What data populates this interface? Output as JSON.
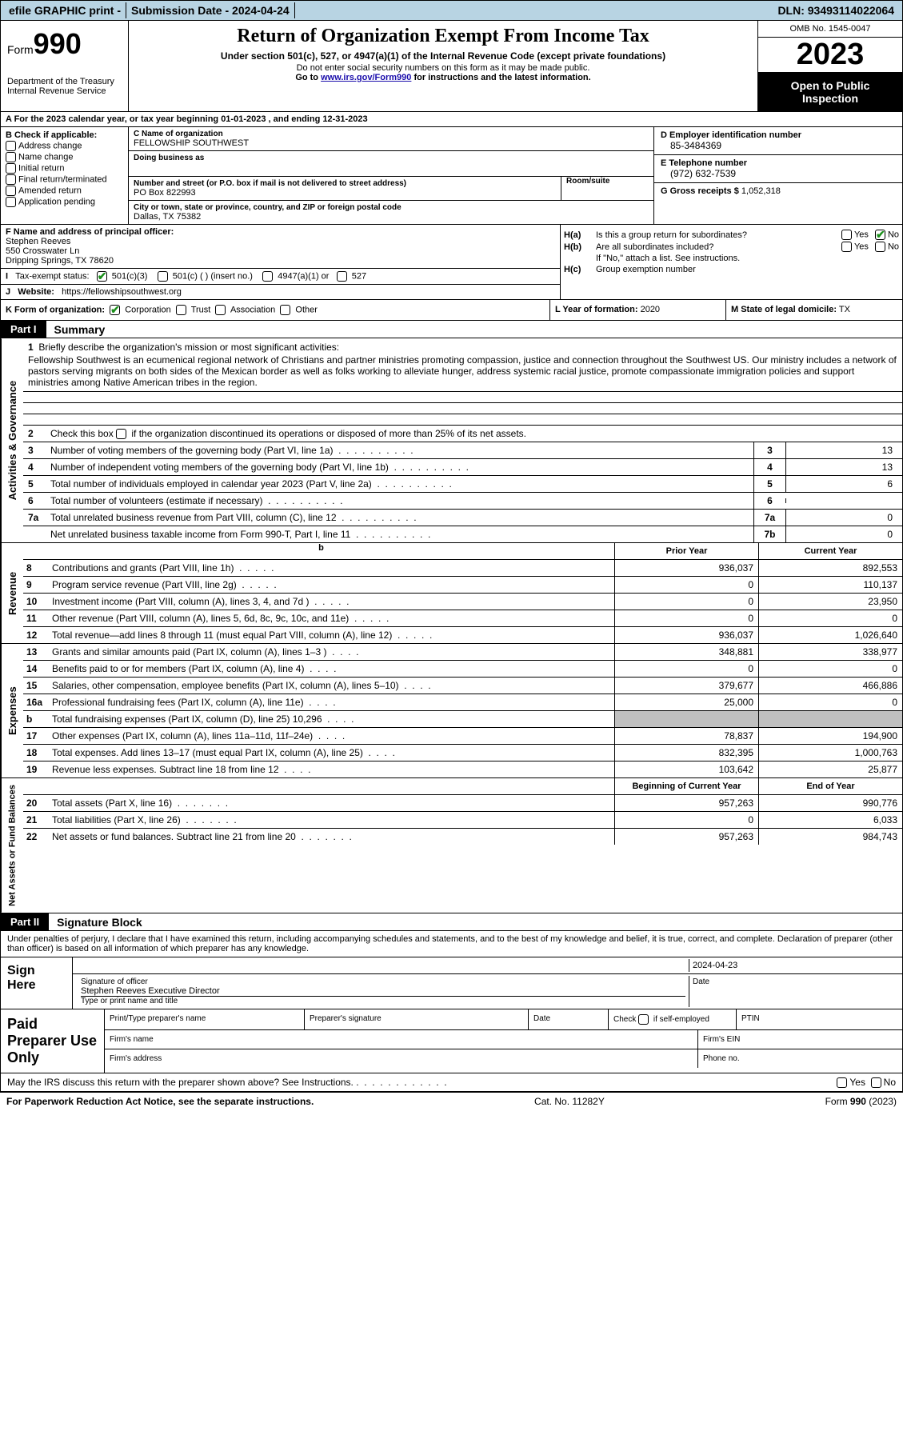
{
  "header_bar": {
    "efile": "efile GRAPHIC print -",
    "submission": "Submission Date - 2024-04-24",
    "dln": "DLN: 93493114022064"
  },
  "form": {
    "prefix": "Form",
    "number": "990",
    "title": "Return of Organization Exempt From Income Tax",
    "subtitle": "Under section 501(c), 527, or 4947(a)(1) of the Internal Revenue Code (except private foundations)",
    "ssn_note": "Do not enter social security numbers on this form as it may be made public.",
    "goto": "Go to ",
    "url": "www.irs.gov/Form990",
    "url_suffix": " for instructions and the latest information.",
    "dept": "Department of the Treasury",
    "irs": "Internal Revenue Service",
    "omb": "OMB No. 1545-0047",
    "year": "2023",
    "inspection": "Open to Public Inspection"
  },
  "section_a": "A For the 2023 calendar year, or tax year beginning 01-01-2023    , and ending 12-31-2023",
  "section_b": {
    "header": "B Check if applicable:",
    "items": [
      "Address change",
      "Name change",
      "Initial return",
      "Final return/terminated",
      "Amended return",
      "Application pending"
    ]
  },
  "section_c": {
    "name_label": "C Name of organization",
    "name": "FELLOWSHIP SOUTHWEST",
    "dba_label": "Doing business as",
    "dba": "",
    "street_label": "Number and street (or P.O. box if mail is not delivered to street address)",
    "street": "PO Box 822993",
    "room_label": "Room/suite",
    "city_label": "City or town, state or province, country, and ZIP or foreign postal code",
    "city": "Dallas, TX  75382"
  },
  "section_d": {
    "ein_label": "D Employer identification number",
    "ein": "85-3484369",
    "phone_label": "E Telephone number",
    "phone": "(972) 632-7539",
    "gross_label": "G Gross receipts $",
    "gross": "1,052,318"
  },
  "section_f": {
    "label": "F  Name and address of principal officer:",
    "name": "Stephen Reeves",
    "street": "550 Crosswater Ln",
    "city": "Dripping Springs, TX  78620"
  },
  "section_h": {
    "ha": "Is this a group return for subordinates?",
    "hb": "Are all subordinates included?",
    "hb_note": "If \"No,\" attach a list. See instructions.",
    "hc": "Group exemption number"
  },
  "section_i": {
    "label": "Tax-exempt status:",
    "opt1": "501(c)(3)",
    "opt2": "501(c) (  ) (insert no.)",
    "opt3": "4947(a)(1) or",
    "opt4": "527"
  },
  "section_j": {
    "label": "Website:",
    "url": "https://fellowshipsouthwest.org"
  },
  "section_k": {
    "label": "K Form of organization:",
    "opts": [
      "Corporation",
      "Trust",
      "Association",
      "Other"
    ]
  },
  "section_l": {
    "label": "L Year of formation:",
    "val": "2020"
  },
  "section_m": {
    "label": "M State of legal domicile:",
    "val": "TX"
  },
  "part1": {
    "label": "Part I",
    "title": "Summary",
    "line1_label": "Briefly describe the organization's mission or most significant activities:",
    "mission": "Fellowship Southwest is an ecumenical regional network of Christians and partner ministries promoting compassion, justice and connection throughout the Southwest US. Our ministry includes a network of pastors serving migrants on both sides of the Mexican border as well as folks working to alleviate hunger, address systemic racial justice, promote compassionate immigration policies and support ministries among Native American tribes in the region.",
    "line2": "Check this box         if the organization discontinued its operations or disposed of more than 25% of its net assets.",
    "gov_lines": [
      {
        "n": "3",
        "desc": "Number of voting members of the governing body (Part VI, line 1a)",
        "box": "3",
        "val": "13"
      },
      {
        "n": "4",
        "desc": "Number of independent voting members of the governing body (Part VI, line 1b)",
        "box": "4",
        "val": "13"
      },
      {
        "n": "5",
        "desc": "Total number of individuals employed in calendar year 2023 (Part V, line 2a)",
        "box": "5",
        "val": "6"
      },
      {
        "n": "6",
        "desc": "Total number of volunteers (estimate if necessary)",
        "box": "6",
        "val": ""
      },
      {
        "n": "7a",
        "desc": "Total unrelated business revenue from Part VIII, column (C), line 12",
        "box": "7a",
        "val": "0"
      },
      {
        "n": "",
        "desc": "Net unrelated business taxable income from Form 990-T, Part I, line 11",
        "box": "7b",
        "val": "0"
      }
    ],
    "col_headers": {
      "prior": "Prior Year",
      "current": "Current Year"
    },
    "revenue_lines": [
      {
        "n": "8",
        "desc": "Contributions and grants (Part VIII, line 1h)",
        "prior": "936,037",
        "current": "892,553"
      },
      {
        "n": "9",
        "desc": "Program service revenue (Part VIII, line 2g)",
        "prior": "0",
        "current": "110,137"
      },
      {
        "n": "10",
        "desc": "Investment income (Part VIII, column (A), lines 3, 4, and 7d )",
        "prior": "0",
        "current": "23,950"
      },
      {
        "n": "11",
        "desc": "Other revenue (Part VIII, column (A), lines 5, 6d, 8c, 9c, 10c, and 11e)",
        "prior": "0",
        "current": "0"
      },
      {
        "n": "12",
        "desc": "Total revenue—add lines 8 through 11 (must equal Part VIII, column (A), line 12)",
        "prior": "936,037",
        "current": "1,026,640"
      }
    ],
    "expense_lines": [
      {
        "n": "13",
        "desc": "Grants and similar amounts paid (Part IX, column (A), lines 1–3 )",
        "prior": "348,881",
        "current": "338,977"
      },
      {
        "n": "14",
        "desc": "Benefits paid to or for members (Part IX, column (A), line 4)",
        "prior": "0",
        "current": "0"
      },
      {
        "n": "15",
        "desc": "Salaries, other compensation, employee benefits (Part IX, column (A), lines 5–10)",
        "prior": "379,677",
        "current": "466,886"
      },
      {
        "n": "16a",
        "desc": "Professional fundraising fees (Part IX, column (A), line 11e)",
        "prior": "25,000",
        "current": "0"
      },
      {
        "n": "b",
        "desc": "Total fundraising expenses (Part IX, column (D), line 25) 10,296",
        "prior": "SHADED",
        "current": "SHADED"
      },
      {
        "n": "17",
        "desc": "Other expenses (Part IX, column (A), lines 11a–11d, 11f–24e)",
        "prior": "78,837",
        "current": "194,900"
      },
      {
        "n": "18",
        "desc": "Total expenses. Add lines 13–17 (must equal Part IX, column (A), line 25)",
        "prior": "832,395",
        "current": "1,000,763"
      },
      {
        "n": "19",
        "desc": "Revenue less expenses. Subtract line 18 from line 12",
        "prior": "103,642",
        "current": "25,877"
      }
    ],
    "net_headers": {
      "begin": "Beginning of Current Year",
      "end": "End of Year"
    },
    "net_lines": [
      {
        "n": "20",
        "desc": "Total assets (Part X, line 16)",
        "prior": "957,263",
        "current": "990,776"
      },
      {
        "n": "21",
        "desc": "Total liabilities (Part X, line 26)",
        "prior": "0",
        "current": "6,033"
      },
      {
        "n": "22",
        "desc": "Net assets or fund balances. Subtract line 21 from line 20",
        "prior": "957,263",
        "current": "984,743"
      }
    ]
  },
  "part2": {
    "label": "Part II",
    "title": "Signature Block",
    "declare": "Under penalties of perjury, I declare that I have examined this return, including accompanying schedules and statements, and to the best of my knowledge and belief, it is true, correct, and complete. Declaration of preparer (other than officer) is based on all information of which preparer has any knowledge.",
    "sign_here": "Sign Here",
    "sig_date": "2024-04-23",
    "sig_officer_label": "Signature of officer",
    "officer": "Stephen Reeves  Executive Director",
    "type_label": "Type or print name and title",
    "date_label": "Date",
    "paid_label": "Paid Preparer Use Only",
    "prep_name_label": "Print/Type preparer's name",
    "prep_sig_label": "Preparer's signature",
    "prep_date_label": "Date",
    "self_emp": "Check         if self-employed",
    "ptin": "PTIN",
    "firm_name": "Firm's name",
    "firm_ein": "Firm's EIN",
    "firm_addr": "Firm's address",
    "phone": "Phone no."
  },
  "discuss": "May the IRS discuss this return with the preparer shown above? See Instructions.",
  "footer": {
    "paperwork": "For Paperwork Reduction Act Notice, see the separate instructions.",
    "cat": "Cat. No. 11282Y",
    "form": "Form 990 (2023)"
  },
  "vert_labels": {
    "governance": "Activities & Governance",
    "revenue": "Revenue",
    "expenses": "Expenses",
    "net": "Net Assets or Fund Balances"
  },
  "yn": {
    "yes": "Yes",
    "no": "No"
  }
}
